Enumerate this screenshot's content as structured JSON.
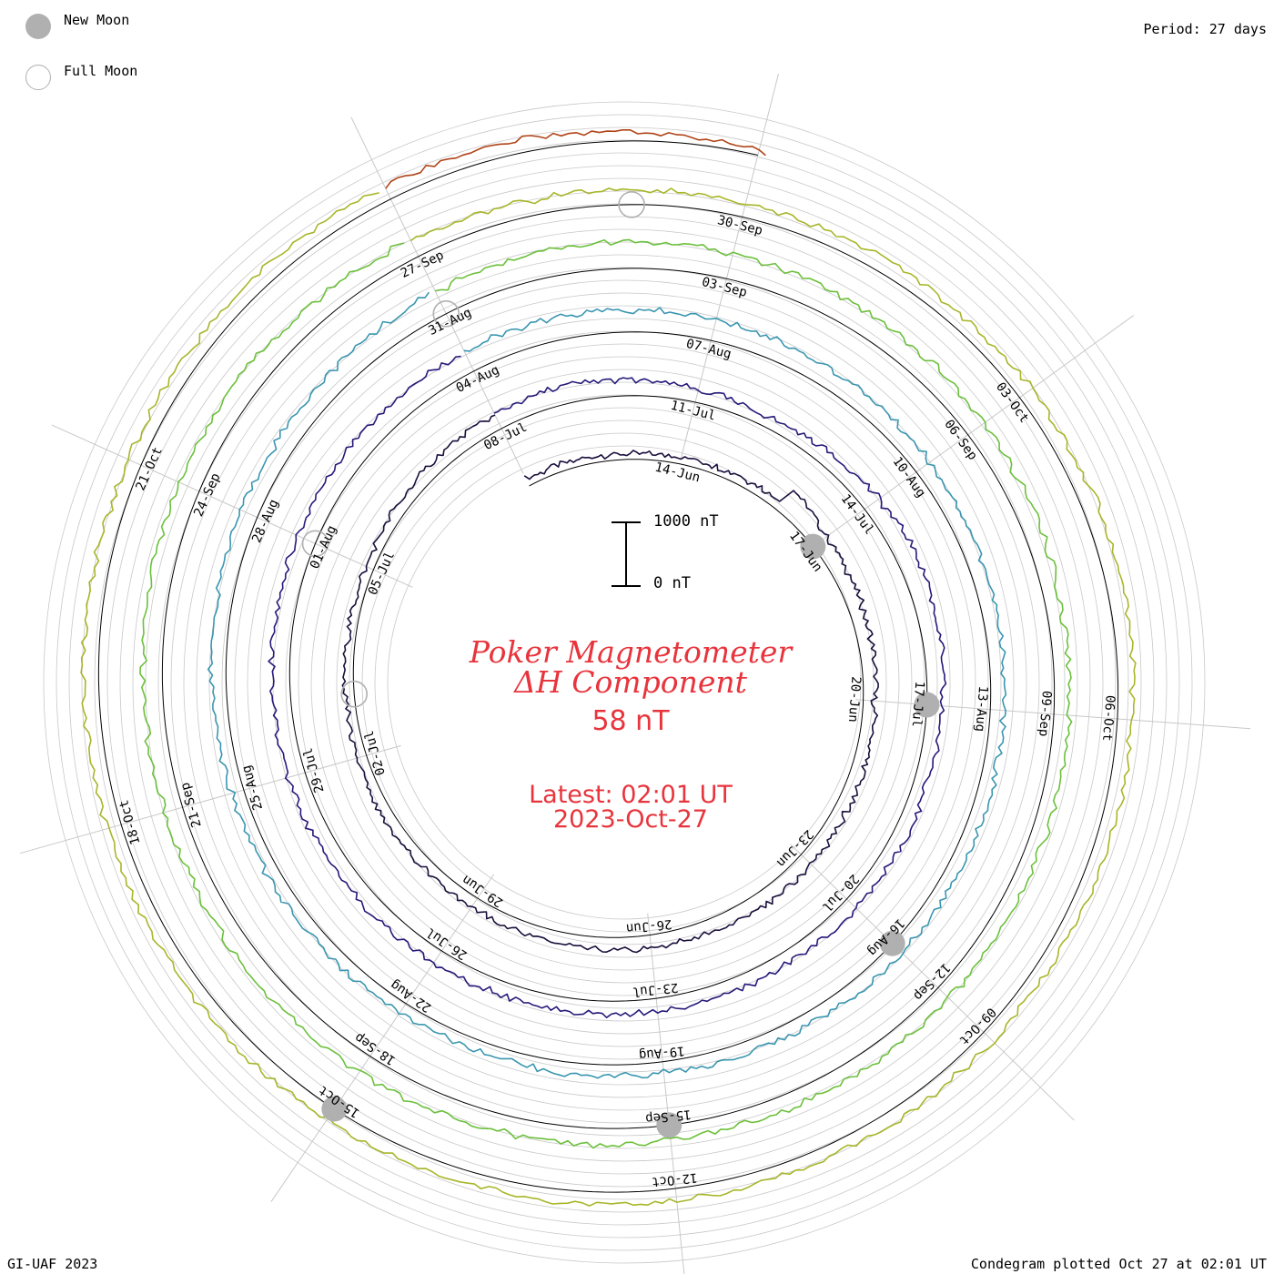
{
  "legend": {
    "new_moon": "New Moon",
    "full_moon": "Full Moon"
  },
  "header": {
    "period": "Period: 27 days"
  },
  "footer": {
    "credit": "GI-UAF 2023",
    "plotted": "Condegram plotted Oct 27 at 02:01 UT"
  },
  "center": {
    "title_line1": "Poker Magnetometer",
    "title_line2": "ΔH Component",
    "value": "58 nT",
    "latest_line1": "Latest: 02:01 UT",
    "latest_line2": "2023-Oct-27"
  },
  "scale_bar": {
    "top_label": "1000 nT",
    "bottom_label": "0 nT"
  },
  "colors": {
    "title": "#e8343c",
    "grid": "#c8c8c8",
    "moon": "#b0b0b0",
    "turns": [
      "#1a0f3c",
      "#261a7a",
      "#2f4aa8",
      "#3a96b0",
      "#3fb89a",
      "#6cc03c",
      "#a8b62a",
      "#b88a22",
      "#b04418",
      "#b81e18"
    ]
  },
  "chart_data": {
    "type": "line",
    "title": "Poker Magnetometer ΔH Component",
    "layout": "condegram spiral, 27-day period, start 2023-06-11, end 2023-10-27 02:01 UT",
    "axes": {
      "scale_nT": [
        0,
        1000
      ]
    },
    "date_labels": [
      "14-Jun",
      "17-Jun",
      "20-Jun",
      "23-Jun",
      "26-Jun",
      "29-Jun",
      "02-Jul",
      "05-Jul",
      "08-Jul",
      "11-Jul",
      "14-Jul",
      "17-Jul",
      "20-Jul",
      "23-Jul",
      "26-Jul",
      "29-Jul",
      "01-Aug",
      "04-Aug",
      "07-Aug",
      "10-Aug",
      "13-Aug",
      "16-Aug",
      "19-Aug",
      "22-Aug",
      "25-Aug",
      "28-Aug",
      "31-Aug",
      "03-Sep",
      "06-Sep",
      "09-Sep",
      "12-Sep",
      "15-Sep",
      "18-Sep",
      "21-Sep",
      "24-Sep",
      "27-Sep",
      "30-Sep",
      "03-Oct",
      "06-Oct",
      "09-Oct",
      "12-Oct",
      "15-Oct",
      "18-Oct",
      "21-Oct"
    ],
    "moons": {
      "new": [
        "17-Jun",
        "17-Jul",
        "16-Aug",
        "15-Sep",
        "15-Oct"
      ],
      "full": [
        "03-Jul",
        "01-Aug",
        "31-Aug",
        "29-Sep"
      ]
    },
    "series": [
      {
        "values": [
          {
            "date": "2023-06-11",
            "nT": 120
          },
          {
            "date": "2023-06-13",
            "nT": 90
          },
          {
            "date": "2023-06-16",
            "nT": 150
          },
          {
            "date": "2023-06-16",
            "nT": 420
          },
          {
            "date": "2023-06-17",
            "nT": 260
          },
          {
            "date": "2023-06-20",
            "nT": 180
          },
          {
            "date": "2023-06-23",
            "nT": 220
          },
          {
            "date": "2023-06-26",
            "nT": 200
          },
          {
            "date": "2023-06-29",
            "nT": 170
          },
          {
            "date": "2023-07-02",
            "nT": 140
          },
          {
            "date": "2023-07-05",
            "nT": 120
          },
          {
            "date": "2023-07-09",
            "nT": 280
          },
          {
            "date": "2023-07-12",
            "nT": 160
          },
          {
            "date": "2023-07-15",
            "nT": 330
          },
          {
            "date": "2023-07-17",
            "nT": 230
          },
          {
            "date": "2023-07-21",
            "nT": 190
          },
          {
            "date": "2023-07-25",
            "nT": 210
          },
          {
            "date": "2023-07-28",
            "nT": 260
          },
          {
            "date": "2023-08-01",
            "nT": 300
          },
          {
            "date": "2023-08-05",
            "nT": 350
          },
          {
            "date": "2023-08-08",
            "nT": 310
          },
          {
            "date": "2023-08-12",
            "nT": 220
          },
          {
            "date": "2023-08-16",
            "nT": 200
          },
          {
            "date": "2023-08-19",
            "nT": 180
          },
          {
            "date": "2023-08-22",
            "nT": 160
          },
          {
            "date": "2023-08-26",
            "nT": 220
          },
          {
            "date": "2023-08-29",
            "nT": 300
          },
          {
            "date": "2023-09-01",
            "nT": 420
          },
          {
            "date": "2023-09-04",
            "nT": 380
          },
          {
            "date": "2023-09-08",
            "nT": 240
          },
          {
            "date": "2023-09-12",
            "nT": 230
          },
          {
            "date": "2023-09-15",
            "nT": 230
          },
          {
            "date": "2023-09-18",
            "nT": 320
          },
          {
            "date": "2023-09-21",
            "nT": 280
          },
          {
            "date": "2023-09-25",
            "nT": 350
          },
          {
            "date": "2023-09-28",
            "nT": 240
          },
          {
            "date": "2023-10-02",
            "nT": 210
          },
          {
            "date": "2023-10-05",
            "nT": 250
          },
          {
            "date": "2023-10-08",
            "nT": 200
          },
          {
            "date": "2023-10-11",
            "nT": 180
          },
          {
            "date": "2023-10-15",
            "nT": 210
          },
          {
            "date": "2023-10-19",
            "nT": 230
          },
          {
            "date": "2023-10-22",
            "nT": 220
          },
          {
            "date": "2023-10-25",
            "nT": 220
          },
          {
            "date": "2023-10-27",
            "nT": 58
          }
        ]
      }
    ]
  }
}
